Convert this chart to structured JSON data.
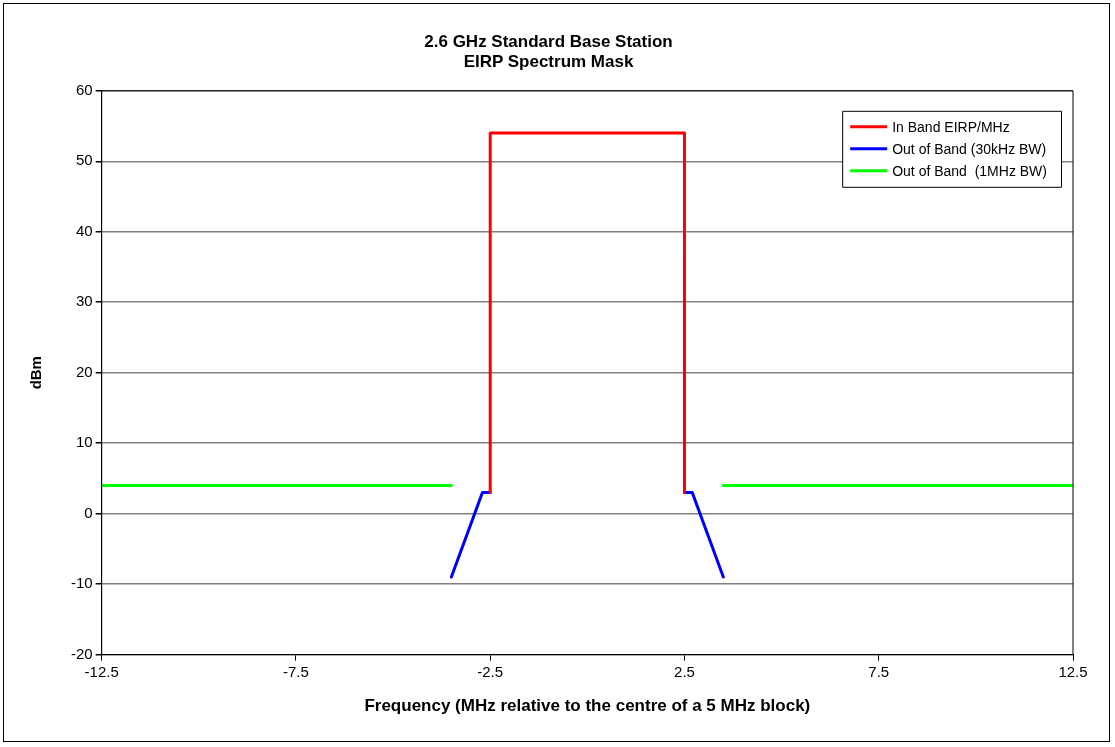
{
  "chart_data": {
    "type": "line",
    "title": "2.6 GHz Standard Base Station\nEIRP Spectrum Mask",
    "xlabel": "Frequency (MHz relative to the centre of a 5 MHz block)",
    "ylabel": "dBm",
    "series": [
      {
        "name": "In Band EIRP/MHz",
        "color": "#ff0000",
        "x": [
          -2.5,
          -2.5,
          2.5,
          2.5
        ],
        "values": [
          3,
          54,
          54,
          3
        ]
      },
      {
        "name": "Out of Band (30kHz BW)",
        "color": "#0000ff",
        "x": [
          -3.5,
          -2.7,
          -2.5,
          0,
          2.5,
          2.7,
          3.5
        ],
        "values": [
          -9,
          3,
          3,
          null,
          3,
          3,
          -9
        ]
      },
      {
        "name": "Out of Band  (1MHz BW)",
        "color": "#00ff00",
        "x": [
          -12.5,
          -3.5,
          0,
          3.5,
          12.5
        ],
        "values": [
          4,
          4,
          null,
          4,
          4
        ]
      }
    ],
    "xlim": [
      -12.5,
      12.5
    ],
    "xticks": [
      -12.5,
      -7.5,
      -2.5,
      2.5,
      7.5,
      12.5
    ],
    "ylim": [
      -20,
      60
    ],
    "yticks": [
      -20,
      -10,
      0,
      10,
      20,
      30,
      40,
      50,
      60
    ],
    "grid": "y",
    "legend": "top right",
    "marker": "none",
    "line_style": "solid"
  }
}
